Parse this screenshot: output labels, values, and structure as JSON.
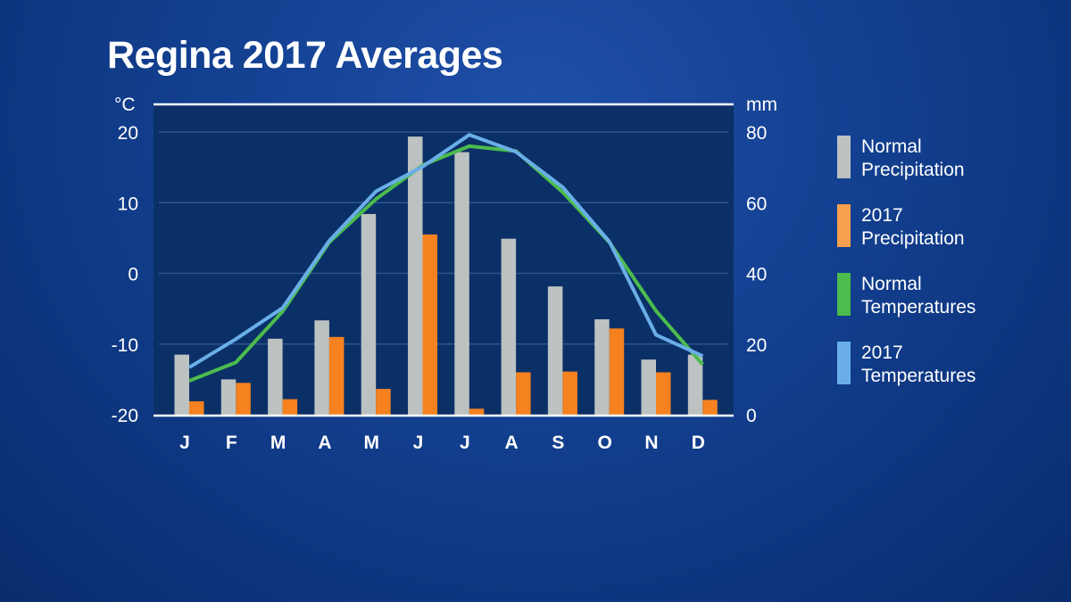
{
  "title": "Regina 2017 Averages",
  "chart_data": {
    "type": "bar+line",
    "title": "Regina 2017 Averages",
    "categories": [
      "J",
      "F",
      "M",
      "A",
      "M",
      "J",
      "J",
      "A",
      "S",
      "O",
      "N",
      "D"
    ],
    "y_left": {
      "label": "°C",
      "range": [
        -20,
        20
      ],
      "ticks": [
        "20",
        "10",
        "0",
        "-10",
        "-20"
      ],
      "tick_values": [
        20,
        10,
        0,
        -10,
        -20
      ]
    },
    "y_right": {
      "label": "mm",
      "range": [
        0,
        80
      ],
      "ticks": [
        "80",
        "60",
        "40",
        "20",
        "0"
      ],
      "tick_values": [
        80,
        60,
        40,
        20,
        0
      ]
    },
    "grid": true,
    "legend_position": "right",
    "series": [
      {
        "name": "Normal Precipitation",
        "line1": "Normal",
        "line2": "Precipitation",
        "kind": "bar",
        "axis": "right",
        "color": "#bcc2c1",
        "values": [
          17,
          10,
          21.5,
          26.7,
          56.8,
          78.7,
          74.3,
          49.8,
          36.3,
          27,
          15.6,
          17
        ]
      },
      {
        "name": "2017 Precipitation",
        "line1": "2017",
        "line2": "Precipitation",
        "kind": "bar",
        "axis": "right",
        "color": "#f5821f",
        "values": [
          3.8,
          9,
          4.4,
          22,
          7.3,
          51,
          1.7,
          12,
          12.2,
          24.4,
          12,
          4.2
        ]
      },
      {
        "name": "Normal Temperatures",
        "line1": "Normal",
        "line2": "Temperatures",
        "kind": "line",
        "axis": "left",
        "color": "#4cbc4c",
        "values": [
          -15.2,
          -12.6,
          -5.4,
          4.4,
          10.5,
          15.3,
          18,
          17.3,
          11.5,
          4.4,
          -5.3,
          -12.9
        ]
      },
      {
        "name": "2017 Temperatures",
        "line1": "2017",
        "line2": "Temperatures",
        "kind": "line",
        "axis": "left",
        "color": "#6aaee8",
        "values": [
          -13.3,
          -9.3,
          -4.9,
          4.6,
          11.6,
          15.1,
          19.6,
          17.2,
          12.2,
          4.5,
          -8.7,
          -11.7
        ]
      }
    ]
  }
}
